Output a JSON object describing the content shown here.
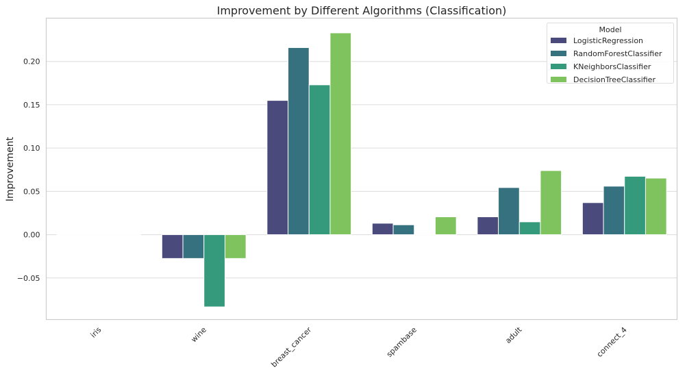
{
  "chart_data": {
    "type": "bar",
    "title": "Improvement by Different Algorithms (Classification)",
    "xlabel": "",
    "ylabel": "Improvement",
    "categories": [
      "iris",
      "wine",
      "breast_cancer",
      "spambase",
      "adult",
      "connect_4"
    ],
    "series": [
      {
        "name": "LogisticRegression",
        "color": "#4a4a7d",
        "values": [
          0.0,
          -0.0275,
          0.155,
          0.0132,
          0.0206,
          0.037
        ]
      },
      {
        "name": "RandomForestClassifier",
        "color": "#367180",
        "values": [
          0.0,
          -0.0275,
          0.216,
          0.0114,
          0.0544,
          0.056
        ]
      },
      {
        "name": "KNeighborsClassifier",
        "color": "#35997b",
        "values": [
          0.0,
          -0.0834,
          0.173,
          0.0005,
          0.0148,
          0.0674
        ]
      },
      {
        "name": "DecisionTreeClassifier",
        "color": "#7fc35f",
        "values": [
          0.0,
          -0.0275,
          0.233,
          0.0206,
          0.074,
          0.0653
        ]
      }
    ],
    "ylim": [
      -0.098,
      0.25
    ],
    "yticks": [
      -0.05,
      0.0,
      0.05,
      0.1,
      0.15,
      0.2
    ],
    "ytick_labels": [
      "−0.05",
      "0.00",
      "0.05",
      "0.10",
      "0.15",
      "0.20"
    ],
    "grid": "horizontal",
    "legend": {
      "title": "Model",
      "placement": "top-right"
    }
  }
}
